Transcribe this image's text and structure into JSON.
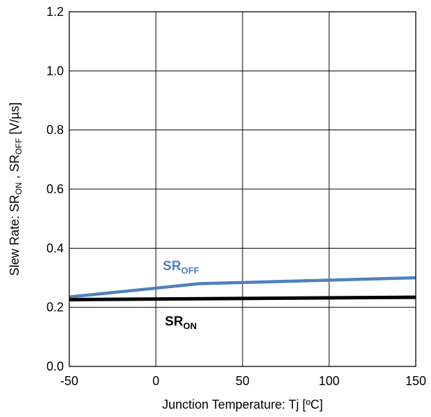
{
  "chart_data": {
    "type": "line",
    "xlabel": "Junction Temperature: Tj [ºC]",
    "ylabel_parts": {
      "a": "Slew Rate: SR",
      "a_sub": "ON",
      "b": " , SR",
      "b_sub": "OFF",
      "c": " [V/µs]"
    },
    "xlim": [
      -50,
      150
    ],
    "ylim": [
      0.0,
      1.2
    ],
    "x_ticks": [
      -50,
      0,
      50,
      100,
      150
    ],
    "x_tick_labels": [
      "-50",
      "0",
      "50",
      "100",
      "150"
    ],
    "y_ticks": [
      0.0,
      0.2,
      0.4,
      0.6,
      0.8,
      1.0,
      1.2
    ],
    "y_tick_labels": [
      "0.0",
      "0.2",
      "0.4",
      "0.6",
      "0.8",
      "1.0",
      "1.2"
    ],
    "grid": true,
    "series": [
      {
        "name": "SR_OFF",
        "label_main": "SR",
        "label_sub": "OFF",
        "color": "#4f81bd",
        "x": [
          -50,
          0,
          25,
          150
        ],
        "y": [
          0.235,
          0.265,
          0.28,
          0.3
        ]
      },
      {
        "name": "SR_ON",
        "label_main": "SR",
        "label_sub": "ON",
        "color": "#000000",
        "x": [
          -50,
          150
        ],
        "y": [
          0.226,
          0.234
        ]
      }
    ]
  }
}
